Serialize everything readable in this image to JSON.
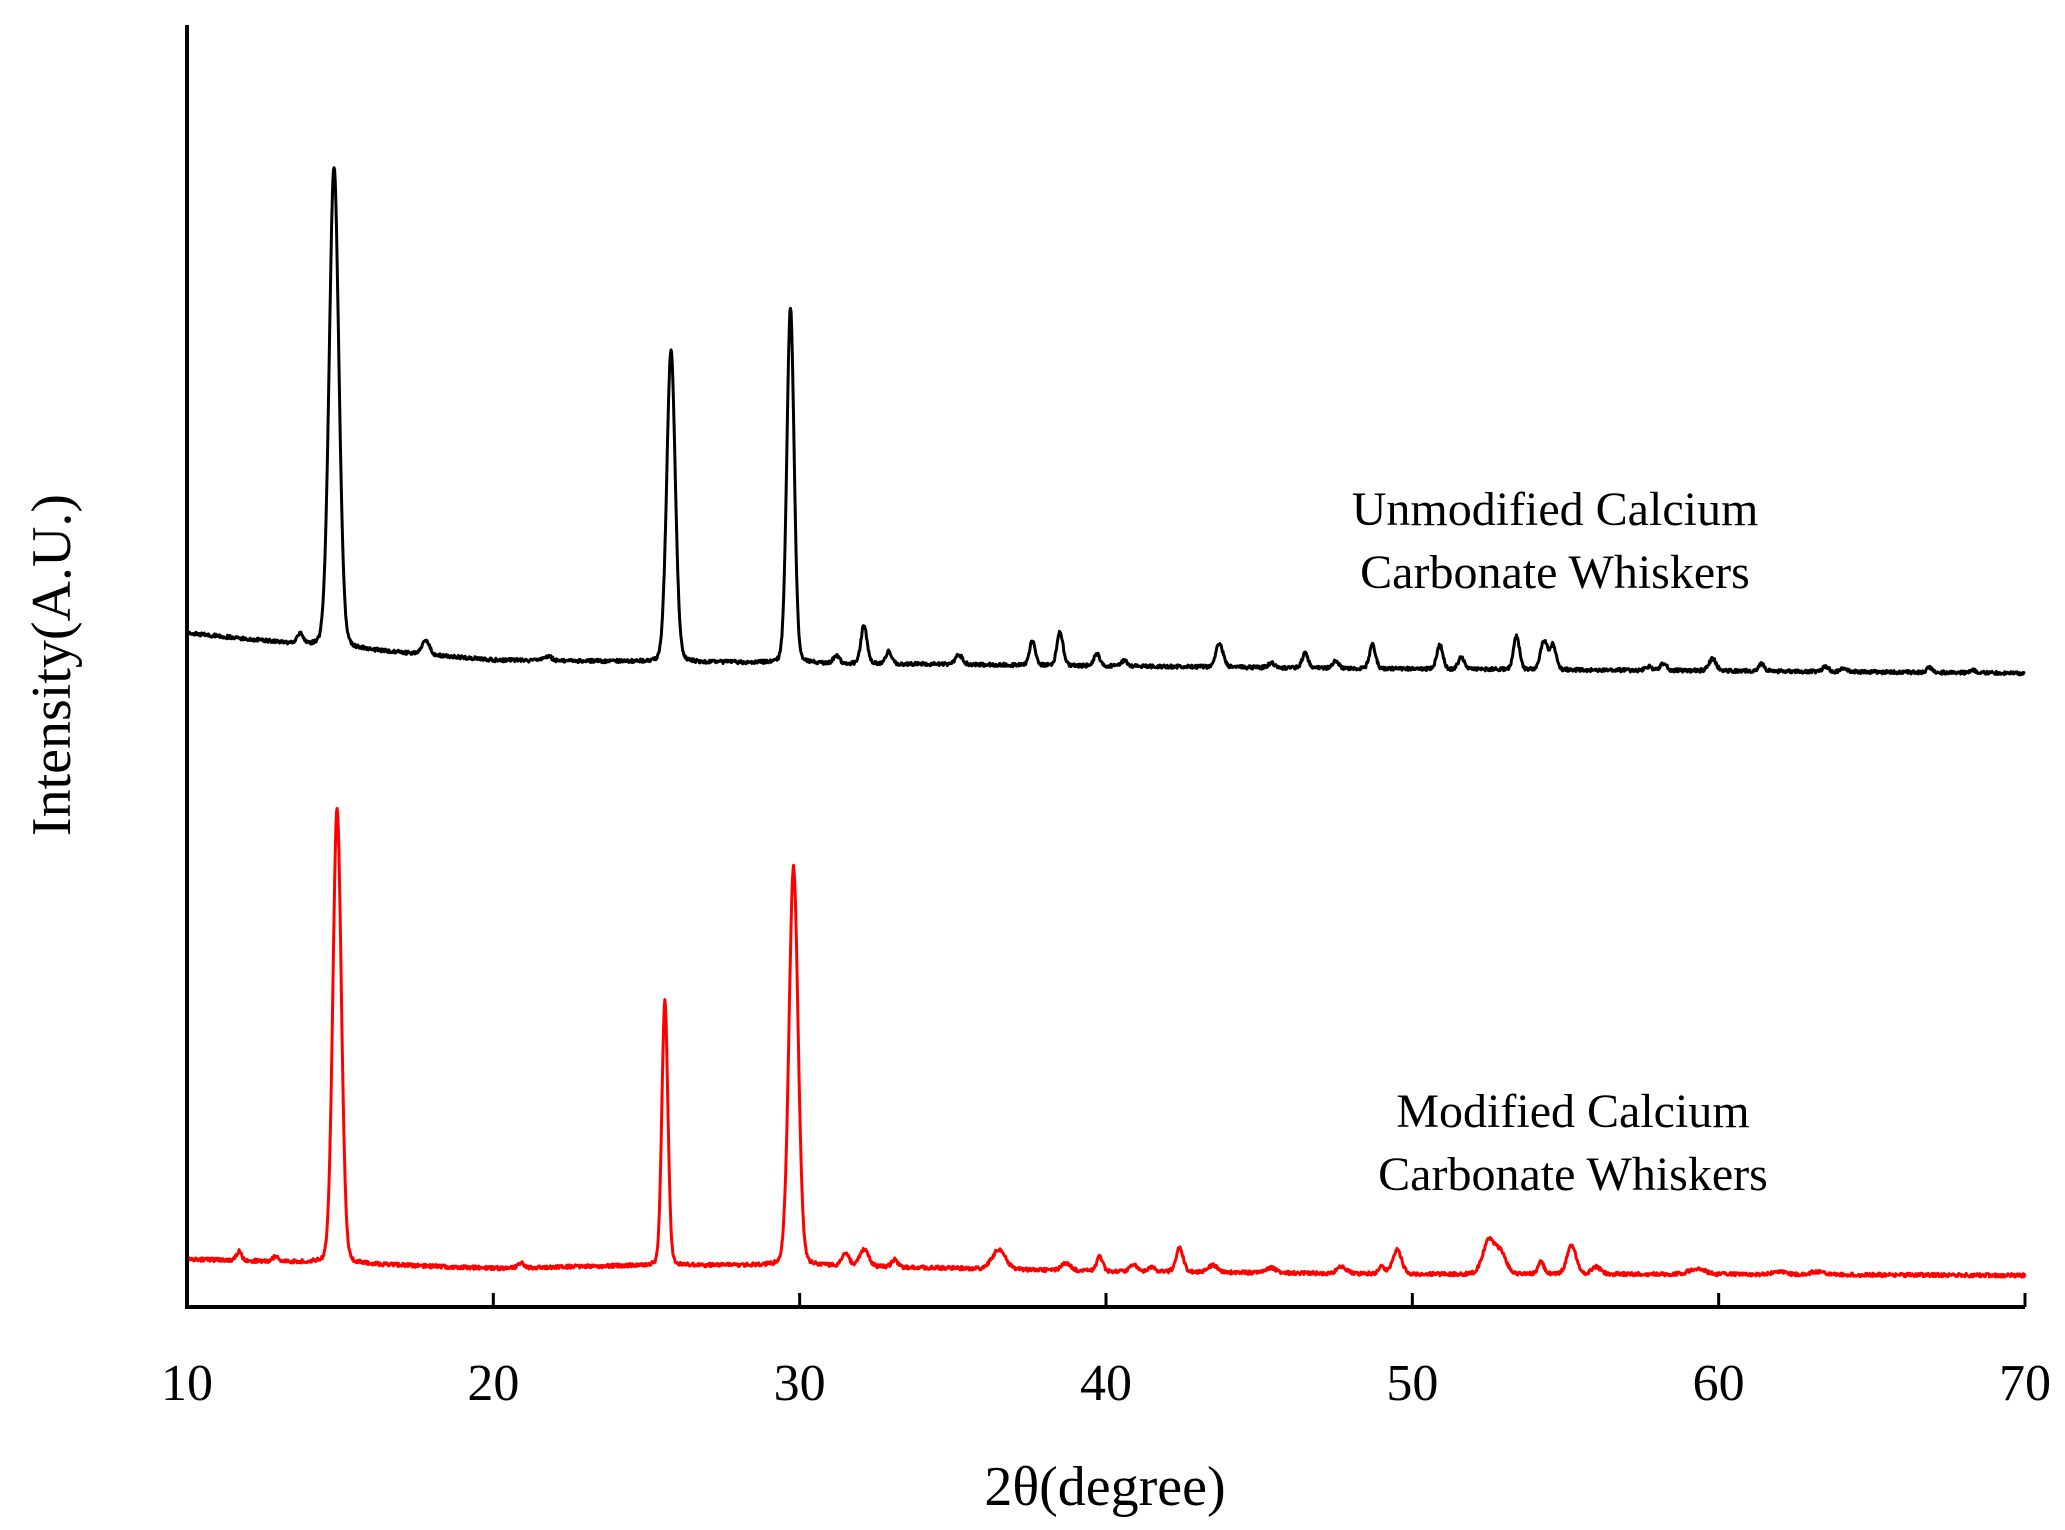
{
  "chart_data": {
    "type": "line",
    "title": "",
    "xlabel": "2θ(degree)",
    "ylabel": "Intensity(A.U.)",
    "xlim": [
      10,
      70
    ],
    "ylim": [
      0,
      2.15
    ],
    "xticks": [
      "10",
      "20",
      "30",
      "40",
      "50",
      "60",
      "70"
    ],
    "yticks_shown": false,
    "grid": false,
    "legend": "none",
    "annotations": [
      {
        "series": "unmodified",
        "lines": [
          "Unmodified Calcium",
          "Carbonate Whiskers"
        ]
      },
      {
        "series": "modified",
        "lines": [
          "Modified Calcium",
          "Carbonate Whiskers"
        ]
      }
    ],
    "series": [
      {
        "id": "unmodified",
        "color": "#000000",
        "baseline": [
          [
            10,
            1.13
          ],
          [
            12,
            1.12
          ],
          [
            14,
            1.11
          ],
          [
            20,
            1.085
          ],
          [
            30,
            1.08
          ],
          [
            40,
            1.075
          ],
          [
            50,
            1.07
          ],
          [
            60,
            1.067
          ],
          [
            70,
            1.063
          ]
        ],
        "peaks": [
          [
            13.7,
            0.02,
            0.1
          ],
          [
            14.8,
            1.0,
            0.16
          ],
          [
            17.8,
            0.03,
            0.12
          ],
          [
            21.8,
            0.008,
            0.12
          ],
          [
            25.8,
            0.65,
            0.14
          ],
          [
            29.7,
            0.74,
            0.12
          ],
          [
            31.2,
            0.015,
            0.1
          ],
          [
            32.1,
            0.08,
            0.1
          ],
          [
            32.9,
            0.025,
            0.1
          ],
          [
            35.2,
            0.02,
            0.12
          ],
          [
            37.6,
            0.05,
            0.1
          ],
          [
            38.5,
            0.07,
            0.1
          ],
          [
            39.7,
            0.025,
            0.1
          ],
          [
            40.6,
            0.012,
            0.1
          ],
          [
            43.7,
            0.05,
            0.12
          ],
          [
            45.4,
            0.01,
            0.1
          ],
          [
            46.5,
            0.03,
            0.1
          ],
          [
            47.5,
            0.015,
            0.1
          ],
          [
            48.7,
            0.05,
            0.1
          ],
          [
            50.9,
            0.05,
            0.1
          ],
          [
            51.6,
            0.025,
            0.1
          ],
          [
            53.4,
            0.07,
            0.1
          ],
          [
            54.3,
            0.06,
            0.12
          ],
          [
            54.6,
            0.05,
            0.1
          ],
          [
            57.7,
            0.008,
            0.1
          ],
          [
            58.2,
            0.015,
            0.1
          ],
          [
            59.8,
            0.025,
            0.12
          ],
          [
            61.4,
            0.015,
            0.1
          ],
          [
            63.5,
            0.01,
            0.1
          ],
          [
            64.1,
            0.008,
            0.1
          ],
          [
            66.9,
            0.01,
            0.1
          ],
          [
            68.3,
            0.005,
            0.1
          ]
        ]
      },
      {
        "id": "modified",
        "color": "#ff0000",
        "baseline": [
          [
            10,
            0.08
          ],
          [
            14,
            0.075
          ],
          [
            20,
            0.065
          ],
          [
            25,
            0.07
          ],
          [
            30,
            0.07
          ],
          [
            40,
            0.06
          ],
          [
            50,
            0.055
          ],
          [
            60,
            0.055
          ],
          [
            70,
            0.053
          ]
        ],
        "peaks": [
          [
            11.7,
            0.02,
            0.08
          ],
          [
            12.9,
            0.01,
            0.1
          ],
          [
            14.9,
            0.95,
            0.14
          ],
          [
            20.9,
            0.01,
            0.1
          ],
          [
            25.6,
            0.55,
            0.1
          ],
          [
            29.8,
            0.83,
            0.15
          ],
          [
            31.5,
            0.025,
            0.12
          ],
          [
            32.1,
            0.035,
            0.15
          ],
          [
            33.1,
            0.015,
            0.1
          ],
          [
            36.5,
            0.04,
            0.22
          ],
          [
            38.7,
            0.015,
            0.15
          ],
          [
            39.8,
            0.03,
            0.1
          ],
          [
            40.9,
            0.015,
            0.12
          ],
          [
            41.5,
            0.01,
            0.1
          ],
          [
            42.4,
            0.05,
            0.12
          ],
          [
            43.5,
            0.015,
            0.15
          ],
          [
            45.4,
            0.01,
            0.15
          ],
          [
            47.7,
            0.015,
            0.15
          ],
          [
            49.0,
            0.015,
            0.1
          ],
          [
            49.5,
            0.05,
            0.15
          ],
          [
            52.5,
            0.07,
            0.2
          ],
          [
            52.9,
            0.04,
            0.18
          ],
          [
            54.2,
            0.025,
            0.1
          ],
          [
            55.2,
            0.06,
            0.15
          ],
          [
            56.0,
            0.015,
            0.15
          ],
          [
            59.3,
            0.012,
            0.25
          ],
          [
            62.0,
            0.006,
            0.2
          ],
          [
            63.2,
            0.006,
            0.2
          ]
        ]
      }
    ]
  }
}
